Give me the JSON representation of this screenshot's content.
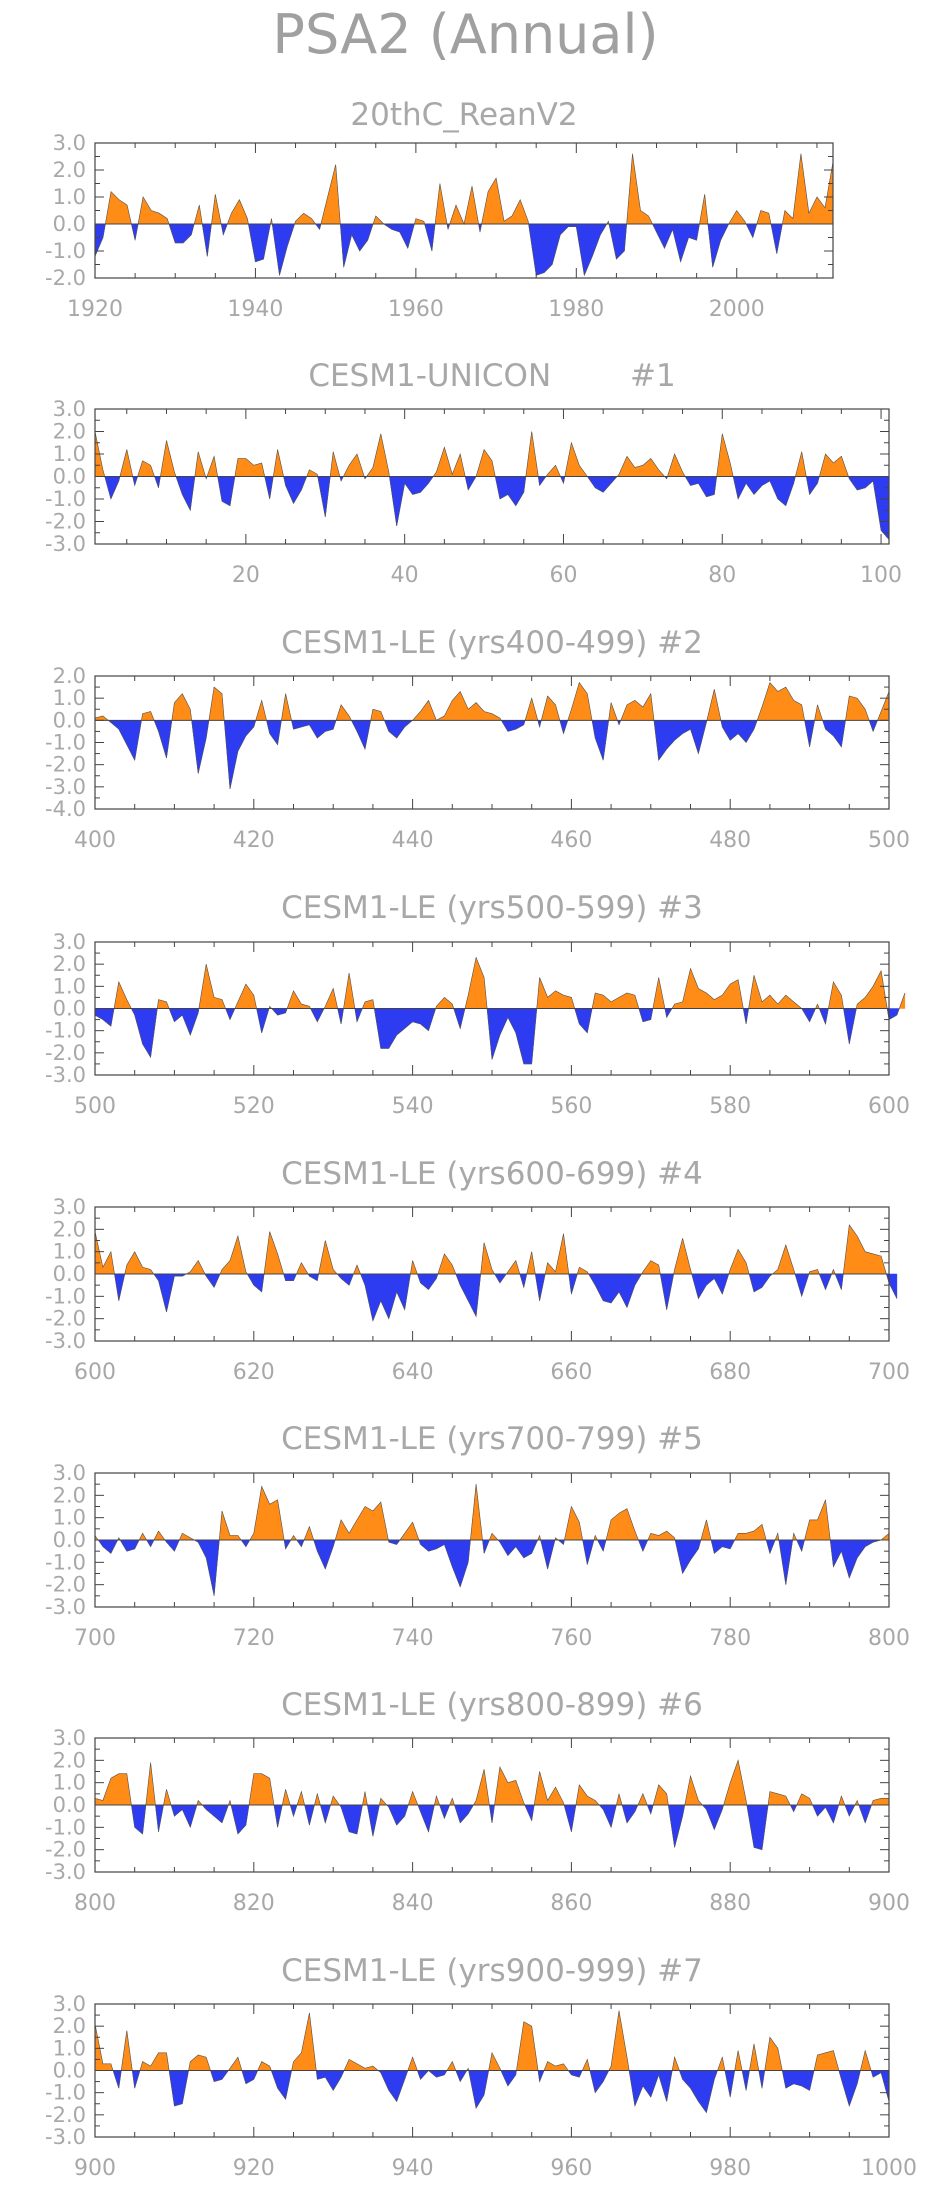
{
  "title": "PSA2 (Annual)",
  "colors": {
    "positive": "#ff8c17",
    "negative": "#2d3cf0",
    "axis": "#444444",
    "text": "#a8a8a8"
  },
  "chart_data": [
    {
      "type": "area",
      "title": "20thC_ReanV2",
      "x_start": 1920,
      "xlim": [
        1920,
        2012
      ],
      "ylim": [
        -2,
        3
      ],
      "yticks": [
        3,
        2,
        1,
        0,
        -1,
        -2
      ],
      "ytick_labels": [
        "3.0",
        "2.0",
        "1.0",
        "0.0",
        "-1.0",
        "-2.0"
      ],
      "xticks": [
        1920,
        1940,
        1960,
        1980,
        2000
      ],
      "values": [
        -1.2,
        -0.5,
        1.2,
        0.9,
        0.7,
        -0.6,
        1.0,
        0.5,
        0.4,
        0.2,
        -0.7,
        -0.7,
        -0.4,
        0.7,
        -1.2,
        1.1,
        -0.4,
        0.4,
        0.9,
        0.2,
        -1.4,
        -1.3,
        0.2,
        -1.9,
        -0.8,
        0.1,
        0.4,
        0.2,
        -0.2,
        1.0,
        2.2,
        -1.6,
        -0.4,
        -1.0,
        -0.6,
        0.3,
        0.0,
        -0.2,
        -0.3,
        -0.9,
        0.2,
        0.1,
        -1.0,
        1.5,
        -0.2,
        0.7,
        0.0,
        1.4,
        -0.3,
        1.2,
        1.7,
        0.1,
        0.3,
        0.9,
        0.1,
        -1.9,
        -1.8,
        -1.5,
        -0.4,
        -0.1,
        -0.1,
        -1.9,
        -1.2,
        -0.4,
        0.1,
        -1.3,
        -1.0,
        2.6,
        0.5,
        0.3,
        -0.3,
        -0.9,
        -0.2,
        -1.4,
        -0.5,
        -0.6,
        1.1,
        -1.6,
        -0.6,
        0.0,
        0.5,
        0.1,
        -0.5,
        0.5,
        0.4,
        -1.1,
        0.5,
        0.2,
        2.6,
        0.4,
        1.0,
        0.6,
        2.3
      ]
    },
    {
      "type": "area",
      "title": "CESM1-UNICON        #1",
      "x_start": 1,
      "xlim": [
        1,
        101
      ],
      "ylim": [
        -3,
        3
      ],
      "yticks": [
        3,
        2,
        1,
        0,
        -1,
        -2,
        -3
      ],
      "ytick_labels": [
        "3.0",
        "2.0",
        "1.0",
        "0.0",
        "-1.0",
        "-2.0",
        "-3.0"
      ],
      "xticks": [
        20,
        40,
        60,
        80,
        100
      ],
      "values": [
        2.0,
        0.3,
        -1.0,
        -0.2,
        1.2,
        -0.4,
        0.7,
        0.5,
        -0.5,
        1.6,
        0.2,
        -0.8,
        -1.5,
        1.1,
        -0.1,
        0.9,
        -1.1,
        -1.3,
        0.8,
        0.8,
        0.5,
        0.6,
        -1.0,
        1.2,
        -0.4,
        -1.2,
        -0.6,
        0.3,
        0.1,
        -1.8,
        1.1,
        -0.2,
        0.5,
        1.0,
        -0.1,
        0.4,
        1.9,
        0.2,
        -2.2,
        -0.3,
        -0.8,
        -0.7,
        -0.3,
        0.2,
        1.3,
        0.1,
        1.0,
        -0.6,
        0.0,
        1.2,
        0.7,
        -1.0,
        -0.8,
        -1.3,
        -0.7,
        2.0,
        -0.4,
        0.1,
        0.5,
        -0.3,
        1.5,
        0.5,
        0.0,
        -0.5,
        -0.7,
        -0.3,
        0.1,
        0.9,
        0.4,
        0.5,
        0.8,
        0.3,
        -0.1,
        1.0,
        0.2,
        -0.4,
        -0.3,
        -0.9,
        -0.8,
        1.9,
        0.6,
        -1.0,
        -0.3,
        -0.8,
        -0.4,
        -0.2,
        -1.0,
        -1.3,
        -0.3,
        1.1,
        -0.8,
        -0.3,
        1.0,
        0.6,
        0.9,
        -0.1,
        -0.6,
        -0.5,
        -0.2,
        -2.4,
        -2.8
      ]
    },
    {
      "type": "area",
      "title": "CESM1-LE (yrs400-499) #2",
      "x_start": 400,
      "xlim": [
        400,
        500
      ],
      "ylim": [
        -4,
        2
      ],
      "yticks": [
        2,
        1,
        0,
        -1,
        -2,
        -3,
        -4
      ],
      "ytick_labels": [
        "2.0",
        "1.0",
        "0.0",
        "-1.0",
        "-2.0",
        "-3.0",
        "-4.0"
      ],
      "xticks": [
        400,
        420,
        440,
        460,
        480,
        500
      ],
      "values": [
        0.1,
        0.2,
        -0.1,
        -0.4,
        -1.1,
        -1.8,
        0.3,
        0.4,
        -0.5,
        -1.7,
        0.8,
        1.2,
        0.5,
        -2.4,
        -0.8,
        1.5,
        1.2,
        -3.1,
        -1.4,
        -0.7,
        -0.3,
        0.9,
        -0.6,
        -1.1,
        1.2,
        -0.4,
        -0.3,
        -0.2,
        -0.8,
        -0.5,
        -0.4,
        0.7,
        0.2,
        -0.5,
        -1.3,
        0.5,
        0.4,
        -0.5,
        -0.8,
        -0.3,
        0.0,
        0.4,
        0.9,
        0.0,
        0.2,
        0.9,
        1.3,
        0.5,
        0.8,
        0.4,
        0.3,
        0.1,
        -0.5,
        -0.4,
        -0.2,
        1.0,
        -0.3,
        1.1,
        0.7,
        -0.6,
        0.5,
        1.7,
        1.2,
        -0.8,
        -1.8,
        0.8,
        -0.2,
        0.7,
        0.9,
        0.6,
        1.2,
        -1.8,
        -1.3,
        -0.9,
        -0.6,
        -0.4,
        -1.5,
        -0.1,
        1.4,
        -0.3,
        -0.9,
        -0.6,
        -1.0,
        -0.4,
        0.6,
        1.7,
        1.3,
        1.5,
        0.9,
        0.7,
        -1.2,
        0.7,
        -0.4,
        -0.7,
        -1.2,
        1.1,
        1.0,
        0.5,
        -0.5,
        0.4,
        1.3
      ]
    },
    {
      "type": "area",
      "title": "CESM1-LE (yrs500-599) #3",
      "x_start": 500,
      "xlim": [
        500,
        600
      ],
      "ylim": [
        -3,
        3
      ],
      "yticks": [
        3,
        2,
        1,
        0,
        -1,
        -2,
        -3
      ],
      "ytick_labels": [
        "3.0",
        "2.0",
        "1.0",
        "0.0",
        "-1.0",
        "-2.0",
        "-3.0"
      ],
      "xticks": [
        500,
        520,
        540,
        560,
        580,
        600
      ],
      "values": [
        -0.3,
        -0.5,
        -0.8,
        1.2,
        0.4,
        -0.3,
        -1.6,
        -2.2,
        0.4,
        0.3,
        -0.6,
        -0.3,
        -1.2,
        -0.2,
        2.0,
        0.5,
        0.4,
        -0.5,
        0.3,
        1.1,
        0.6,
        -1.1,
        0.1,
        -0.3,
        -0.2,
        0.8,
        0.2,
        0.1,
        -0.6,
        0.1,
        0.9,
        -0.7,
        1.6,
        -0.6,
        0.3,
        0.4,
        -1.8,
        -1.8,
        -1.2,
        -0.9,
        -0.6,
        -0.7,
        -1.0,
        0.1,
        0.5,
        0.2,
        -0.9,
        0.6,
        2.3,
        1.4,
        -2.3,
        -1.2,
        -0.4,
        -1.1,
        -2.5,
        -2.5,
        1.4,
        0.5,
        0.8,
        0.6,
        0.5,
        -0.7,
        -1.1,
        0.7,
        0.6,
        0.3,
        0.5,
        0.7,
        0.6,
        -0.6,
        -0.5,
        1.4,
        -0.4,
        0.2,
        0.3,
        1.8,
        0.9,
        0.7,
        0.4,
        0.6,
        1.1,
        1.3,
        -0.7,
        1.5,
        0.3,
        0.6,
        0.2,
        0.6,
        0.3,
        0.0,
        -0.6,
        0.2,
        -0.7,
        1.2,
        0.6,
        -1.6,
        0.2,
        0.5,
        1.0,
        1.7,
        -0.5,
        -0.3,
        0.7
      ]
    },
    {
      "type": "area",
      "title": "CESM1-LE (yrs600-699) #4",
      "x_start": 600,
      "xlim": [
        600,
        700
      ],
      "ylim": [
        -3,
        3
      ],
      "yticks": [
        3,
        2,
        1,
        0,
        -1,
        -2,
        -3
      ],
      "ytick_labels": [
        "3.0",
        "2.0",
        "1.0",
        "0.0",
        "-1.0",
        "-2.0",
        "-3.0"
      ],
      "xticks": [
        600,
        620,
        640,
        660,
        680,
        700
      ],
      "values": [
        1.9,
        0.3,
        1.0,
        -1.2,
        0.4,
        1.0,
        0.3,
        0.2,
        -0.3,
        -1.7,
        -0.1,
        -0.1,
        0.1,
        0.6,
        -0.1,
        -0.6,
        0.2,
        0.6,
        1.7,
        0.1,
        -0.5,
        -0.8,
        1.9,
        0.9,
        -0.3,
        -0.3,
        0.5,
        -0.1,
        -0.3,
        1.5,
        0.2,
        -0.2,
        -0.5,
        0.4,
        -0.5,
        -2.1,
        -1.2,
        -2.0,
        -0.8,
        -1.6,
        0.6,
        -0.4,
        -0.7,
        -0.2,
        0.9,
        0.4,
        -0.5,
        -1.2,
        -1.9,
        1.4,
        0.2,
        -0.4,
        0.1,
        0.6,
        -0.6,
        1.0,
        -1.2,
        0.5,
        0.1,
        1.8,
        -0.9,
        0.3,
        0.1,
        -0.5,
        -1.2,
        -1.3,
        -0.8,
        -1.5,
        -0.5,
        0.1,
        0.6,
        0.4,
        -1.6,
        0.2,
        1.6,
        0.2,
        -1.1,
        -0.5,
        -0.2,
        -0.9,
        0.2,
        1.1,
        0.5,
        -0.8,
        -0.6,
        -0.1,
        0.2,
        1.3,
        0.2,
        -1.0,
        0.1,
        0.2,
        -0.7,
        0.2,
        -0.7,
        2.2,
        1.7,
        1.0,
        0.9,
        0.8,
        -0.4,
        -1.1
      ]
    },
    {
      "type": "area",
      "title": "CESM1-LE (yrs700-799) #5",
      "x_start": 700,
      "xlim": [
        700,
        800
      ],
      "ylim": [
        -3,
        3
      ],
      "yticks": [
        3,
        2,
        1,
        0,
        -1,
        -2,
        -3
      ],
      "ytick_labels": [
        "3.0",
        "2.0",
        "1.0",
        "0.0",
        "-1.0",
        "-2.0",
        "-3.0"
      ],
      "xticks": [
        700,
        720,
        740,
        760,
        780,
        800
      ],
      "values": [
        0.2,
        -0.3,
        -0.6,
        0.1,
        -0.5,
        -0.4,
        0.3,
        -0.3,
        0.4,
        -0.1,
        -0.5,
        0.3,
        0.1,
        -0.1,
        -0.8,
        -2.5,
        1.3,
        0.2,
        0.2,
        -0.3,
        0.3,
        2.4,
        1.6,
        1.8,
        -0.4,
        0.2,
        -0.3,
        0.6,
        -0.5,
        -1.3,
        -0.3,
        0.9,
        0.3,
        0.9,
        1.5,
        1.3,
        1.7,
        -0.1,
        -0.2,
        0.3,
        0.8,
        -0.2,
        -0.5,
        -0.4,
        -0.2,
        -1.2,
        -2.1,
        -1.0,
        2.5,
        -0.6,
        0.3,
        -0.1,
        -0.7,
        -0.3,
        -0.8,
        -0.6,
        0.2,
        -1.3,
        0.1,
        -0.2,
        1.5,
        0.8,
        -1.1,
        0.2,
        -0.5,
        0.9,
        1.2,
        1.4,
        0.4,
        -0.5,
        0.3,
        0.2,
        0.4,
        0.1,
        -1.5,
        -0.9,
        -0.4,
        0.9,
        -0.6,
        -0.3,
        -0.4,
        0.3,
        0.3,
        0.4,
        0.7,
        -0.6,
        0.3,
        -2.0,
        0.3,
        -0.5,
        0.9,
        0.9,
        1.8,
        -1.2,
        -0.5,
        -1.7,
        -0.8,
        -0.3,
        -0.1,
        0.0,
        0.3
      ]
    },
    {
      "type": "area",
      "title": "CESM1-LE (yrs800-899) #6",
      "x_start": 800,
      "xlim": [
        800,
        900
      ],
      "ylim": [
        -3,
        3
      ],
      "yticks": [
        3,
        2,
        1,
        0,
        -1,
        -2,
        -3
      ],
      "ytick_labels": [
        "3.0",
        "2.0",
        "1.0",
        "0.0",
        "-1.0",
        "-2.0",
        "-3.0"
      ],
      "xticks": [
        800,
        820,
        840,
        860,
        880,
        900
      ],
      "values": [
        0.3,
        0.2,
        1.2,
        1.4,
        1.4,
        -1.0,
        -1.3,
        1.9,
        -1.2,
        0.7,
        -0.5,
        -0.2,
        -1.0,
        0.2,
        -0.2,
        -0.5,
        -0.8,
        0.2,
        -1.3,
        -0.9,
        1.4,
        1.4,
        1.2,
        -1.0,
        0.7,
        -0.5,
        0.6,
        -0.9,
        0.5,
        -0.8,
        0.4,
        -0.1,
        -1.2,
        -1.3,
        0.6,
        -1.4,
        0.3,
        -0.1,
        -0.9,
        -0.5,
        0.6,
        -0.3,
        -1.2,
        0.4,
        -0.6,
        0.3,
        -0.8,
        -0.4,
        0.2,
        1.6,
        -0.8,
        1.7,
        1.0,
        1.1,
        0.1,
        -0.7,
        1.5,
        0.2,
        0.8,
        0.1,
        -1.2,
        0.9,
        0.4,
        0.2,
        -0.2,
        -1.0,
        0.5,
        -0.8,
        -0.3,
        0.5,
        -0.4,
        0.9,
        0.5,
        -1.9,
        -0.5,
        1.3,
        0.2,
        -0.2,
        -1.1,
        -0.2,
        1.0,
        2.0,
        0.2,
        -1.9,
        -2.0,
        0.6,
        0.5,
        0.4,
        -0.3,
        0.5,
        0.3,
        -0.5,
        -0.1,
        -0.8,
        0.4,
        -0.5,
        0.2,
        -0.8,
        0.2,
        0.3,
        0.3
      ]
    },
    {
      "type": "area",
      "title": "CESM1-LE (yrs900-999) #7",
      "x_start": 900,
      "xlim": [
        900,
        1000
      ],
      "ylim": [
        -3,
        3
      ],
      "yticks": [
        3,
        2,
        1,
        0,
        -1,
        -2,
        -3
      ],
      "ytick_labels": [
        "3.0",
        "2.0",
        "1.0",
        "0.0",
        "-1.0",
        "-2.0",
        "-3.0"
      ],
      "xticks": [
        900,
        920,
        940,
        960,
        980,
        1000
      ],
      "values": [
        2.1,
        0.3,
        0.3,
        -0.8,
        1.8,
        -0.8,
        0.4,
        0.2,
        0.8,
        0.8,
        -1.6,
        -1.5,
        0.4,
        0.7,
        0.6,
        -0.5,
        -0.4,
        0.1,
        0.6,
        -0.6,
        -0.4,
        0.4,
        0.2,
        -0.8,
        -1.3,
        0.4,
        0.8,
        2.6,
        -0.4,
        -0.3,
        -0.9,
        -0.3,
        0.5,
        0.3,
        0.1,
        0.2,
        -0.1,
        -0.9,
        -1.4,
        -0.4,
        0.6,
        -0.4,
        0.0,
        -0.3,
        -0.2,
        0.4,
        -0.5,
        0.1,
        -1.7,
        -1.1,
        0.8,
        0.1,
        -0.7,
        -0.2,
        2.2,
        2.0,
        -0.5,
        0.4,
        0.2,
        0.3,
        -0.2,
        -0.3,
        0.5,
        -1.0,
        -0.5,
        0.2,
        2.7,
        0.6,
        -1.6,
        -0.7,
        -1.2,
        -0.2,
        -1.4,
        0.6,
        -0.4,
        -0.8,
        -1.4,
        -1.9,
        -0.4,
        0.6,
        -1.2,
        0.9,
        -0.9,
        1.2,
        -0.8,
        1.5,
        1.0,
        -0.8,
        -0.6,
        -0.7,
        -0.9,
        0.7,
        0.8,
        0.9,
        -0.4,
        -1.6,
        -0.6,
        0.9,
        -0.3,
        -0.1,
        -1.4
      ]
    }
  ]
}
